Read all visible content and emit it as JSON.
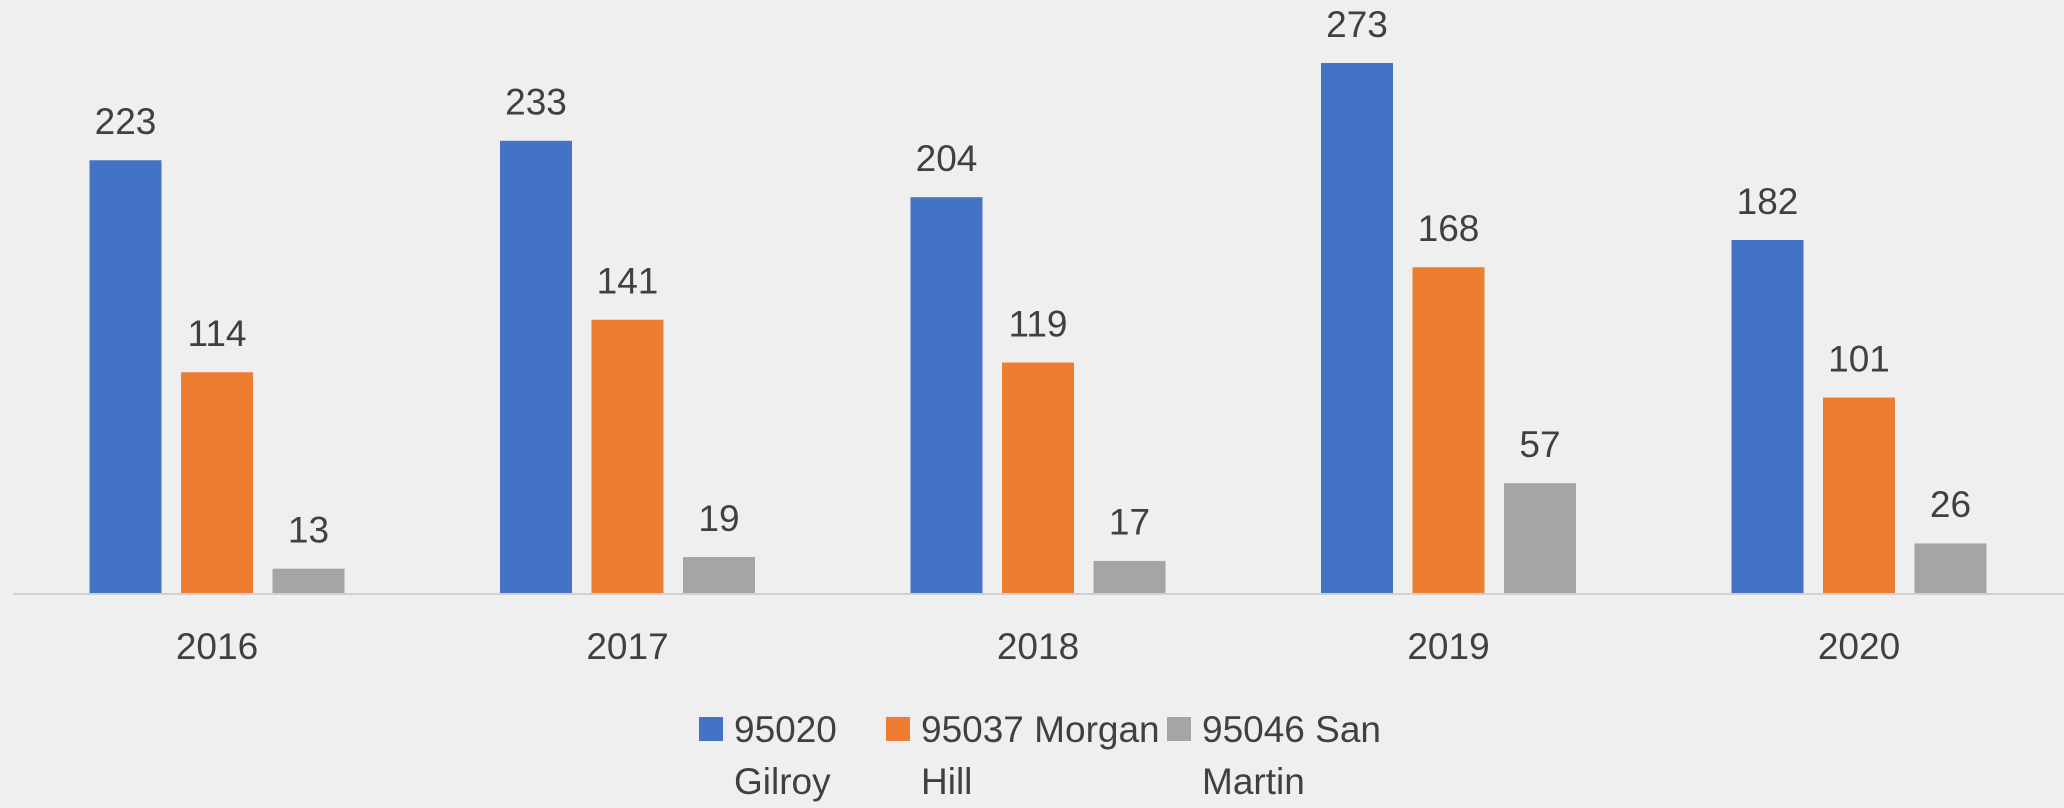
{
  "chart_data": {
    "type": "bar",
    "categories": [
      "2016",
      "2017",
      "2018",
      "2019",
      "2020"
    ],
    "series": [
      {
        "name": "95020 Gilroy",
        "color": "#4472c4",
        "values": [
          223,
          233,
          204,
          273,
          182
        ]
      },
      {
        "name": "95037 Morgan Hill",
        "color": "#ed7d31",
        "values": [
          114,
          141,
          119,
          168,
          101
        ]
      },
      {
        "name": "95046 San Martin",
        "color": "#a5a5a5",
        "values": [
          13,
          19,
          17,
          57,
          26
        ]
      }
    ],
    "legend": "bottom"
  }
}
